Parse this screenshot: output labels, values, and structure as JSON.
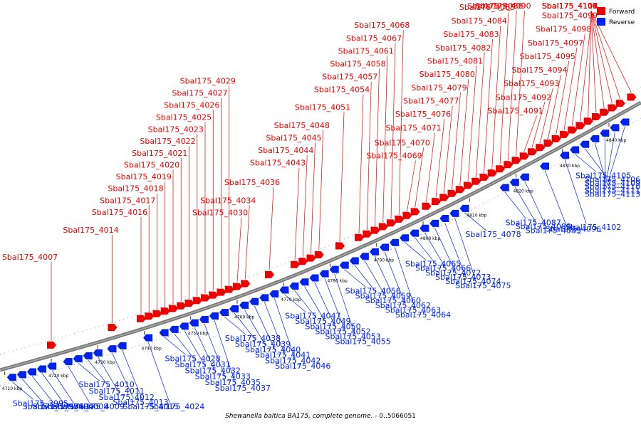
{
  "caption": {
    "organism": "Shewanella baltica BA175, complete genome.",
    "range": " - 0..5066051"
  },
  "legend": [
    {
      "name": "Forward",
      "color": "#ee0000"
    },
    {
      "name": "Reverse",
      "color": "#0022ee"
    }
  ],
  "ticks": [
    "4710 kbp",
    "4720 kbp",
    "4730 kbp",
    "4740 kbp",
    "4750 kbp",
    "4760 kbp",
    "4770 kbp",
    "4780 kbp",
    "4790 kbp",
    "4800 kbp",
    "4810 kbp",
    "4820 kbp",
    "4830 kbp",
    "4840 kbp"
  ],
  "forward_genes": [
    {
      "name": "Sbal175_4007",
      "k": 1.6
    },
    {
      "name": "Sbal175_4014",
      "k": 3.5
    },
    {
      "name": "Sbal175_4016",
      "k": 4.4
    },
    {
      "name": "Sbal175_4017",
      "k": 4.65
    },
    {
      "name": "Sbal175_4018",
      "k": 4.9
    },
    {
      "name": "Sbal175_4019",
      "k": 5.15
    },
    {
      "name": "Sbal175_4020",
      "k": 5.4
    },
    {
      "name": "Sbal175_4021",
      "k": 5.65
    },
    {
      "name": "Sbal175_4022",
      "k": 5.9
    },
    {
      "name": "Sbal175_4023",
      "k": 6.15
    },
    {
      "name": "Sbal175_4025",
      "k": 6.4
    },
    {
      "name": "Sbal175_4026",
      "k": 6.65
    },
    {
      "name": "Sbal175_4027",
      "k": 6.9
    },
    {
      "name": "Sbal175_4029",
      "k": 7.15
    },
    {
      "name": "Sbal175_4030",
      "k": 7.4
    },
    {
      "name": "Sbal175_4034",
      "k": 7.65
    },
    {
      "name": "Sbal175_4036",
      "k": 8.4
    },
    {
      "name": "Sbal175_4043",
      "k": 9.2
    },
    {
      "name": "Sbal175_4044",
      "k": 9.45
    },
    {
      "name": "Sbal175_4045",
      "k": 9.7
    },
    {
      "name": "Sbal175_4048",
      "k": 9.95
    },
    {
      "name": "Sbal175_4051",
      "k": 10.6
    },
    {
      "name": "Sbal175_4054",
      "k": 11.2
    },
    {
      "name": "Sbal175_4057",
      "k": 11.45
    },
    {
      "name": "Sbal175_4058",
      "k": 11.7
    },
    {
      "name": "Sbal175_4061",
      "k": 11.95
    },
    {
      "name": "Sbal175_4067",
      "k": 12.2
    },
    {
      "name": "Sbal175_4068",
      "k": 12.45
    },
    {
      "name": "Sbal175_4069",
      "k": 12.7
    },
    {
      "name": "Sbal175_4070",
      "k": 12.95
    },
    {
      "name": "Sbal175_4071",
      "k": 13.3
    },
    {
      "name": "Sbal175_4076",
      "k": 13.6
    },
    {
      "name": "Sbal175_4077",
      "k": 13.85
    },
    {
      "name": "Sbal175_4079",
      "k": 14.1
    },
    {
      "name": "Sbal175_4080",
      "k": 14.35
    },
    {
      "name": "Sbal175_4081",
      "k": 14.6
    },
    {
      "name": "Sbal175_4082",
      "k": 14.85
    },
    {
      "name": "Sbal175_4083",
      "k": 15.1
    },
    {
      "name": "Sbal175_4084",
      "k": 15.35
    },
    {
      "name": "Sbal175_4085",
      "k": 15.6
    },
    {
      "name": "Sbal175_4086",
      "k": 15.85
    },
    {
      "name": "Sbal175_4090",
      "k": 16.1
    },
    {
      "name": "Sbal175_4091",
      "k": 16.35
    },
    {
      "name": "Sbal175_4092",
      "k": 16.6
    },
    {
      "name": "Sbal175_4093",
      "k": 16.85
    },
    {
      "name": "Sbal175_4094",
      "k": 17.1
    },
    {
      "name": "Sbal175_4095",
      "k": 17.35
    },
    {
      "name": "Sbal175_4097",
      "k": 17.6
    },
    {
      "name": "Sbal175_4098",
      "k": 17.85
    },
    {
      "name": "Sbal175_4099",
      "k": 18.1
    },
    {
      "name": "Sbal175_4100",
      "k": 18.35
    },
    {
      "name": "Sbal175_4103",
      "k": 18.6
    },
    {
      "name": "Sbal175_4104",
      "k": 18.85
    },
    {
      "name": "Sbal175_4107",
      "k": 19.1
    },
    {
      "name": "Sbal175_4108",
      "k": 19.35
    },
    {
      "name": "Sbal175_4114",
      "k": 19.7
    }
  ],
  "reverse_genes": [
    {
      "name": "Sbal175_3995",
      "k": 0.3
    },
    {
      "name": "Sbal175_3997",
      "k": 0.55
    },
    {
      "name": "Sbal175_3999",
      "k": 0.8
    },
    {
      "name": "Sbal175_4000",
      "k": 1.05
    },
    {
      "name": "Sbal175_4008",
      "k": 1.3
    },
    {
      "name": "Sbal175_4009",
      "k": 1.7
    },
    {
      "name": "Sbal175_4010",
      "k": 1.95
    },
    {
      "name": "Sbal175_4011",
      "k": 2.2
    },
    {
      "name": "Sbal175_4012",
      "k": 2.45
    },
    {
      "name": "Sbal175_4013",
      "k": 2.8
    },
    {
      "name": "Sbal175_4015",
      "k": 3.05
    },
    {
      "name": "Sbal175_4024",
      "k": 3.7
    },
    {
      "name": "Sbal175_4028",
      "k": 4.1
    },
    {
      "name": "Sbal175_4031",
      "k": 4.35
    },
    {
      "name": "Sbal175_4032",
      "k": 4.6
    },
    {
      "name": "Sbal175_4033",
      "k": 4.85
    },
    {
      "name": "Sbal175_4035",
      "k": 5.1
    },
    {
      "name": "Sbal175_4037",
      "k": 5.35
    },
    {
      "name": "Sbal175_4038",
      "k": 5.6
    },
    {
      "name": "Sbal175_4039",
      "k": 5.85
    },
    {
      "name": "Sbal175_4040",
      "k": 6.1
    },
    {
      "name": "Sbal175_4041",
      "k": 6.35
    },
    {
      "name": "Sbal175_4042",
      "k": 6.6
    },
    {
      "name": "Sbal175_4046",
      "k": 6.85
    },
    {
      "name": "Sbal175_4047",
      "k": 7.1
    },
    {
      "name": "Sbal175_4049",
      "k": 7.35
    },
    {
      "name": "Sbal175_4050",
      "k": 7.6
    },
    {
      "name": "Sbal175_4052",
      "k": 7.85
    },
    {
      "name": "Sbal175_4053",
      "k": 8.1
    },
    {
      "name": "Sbal175_4055",
      "k": 8.35
    },
    {
      "name": "Sbal175_4056",
      "k": 8.6
    },
    {
      "name": "Sbal175_4059",
      "k": 8.85
    },
    {
      "name": "Sbal175_4060",
      "k": 9.1
    },
    {
      "name": "Sbal175_4062",
      "k": 9.35
    },
    {
      "name": "Sbal175_4063",
      "k": 9.6
    },
    {
      "name": "Sbal175_4064",
      "k": 9.85
    },
    {
      "name": "Sbal175_4065",
      "k": 10.1
    },
    {
      "name": "Sbal175_4066",
      "k": 10.35
    },
    {
      "name": "Sbal175_4072",
      "k": 10.6
    },
    {
      "name": "Sbal175_4073",
      "k": 10.85
    },
    {
      "name": "Sbal175_4074",
      "k": 11.1
    },
    {
      "name": "Sbal175_4075",
      "k": 11.35
    },
    {
      "name": "Sbal175_4078",
      "k": 11.6
    },
    {
      "name": "Sbal175_4087",
      "k": 12.6
    },
    {
      "name": "Sbal175_4088",
      "k": 12.85
    },
    {
      "name": "Sbal175_4089",
      "k": 13.1
    },
    {
      "name": "Sbal175_4096",
      "k": 13.6
    },
    {
      "name": "Sbal175_4102",
      "k": 14.1
    },
    {
      "name": "Sbal175_4105",
      "k": 14.35
    },
    {
      "name": "Sbal175_4106",
      "k": 14.6
    },
    {
      "name": "Sbal175_4109",
      "k": 14.85
    },
    {
      "name": "Sbal175_4110",
      "k": 15.1
    },
    {
      "name": "Sbal175_4111",
      "k": 15.35
    },
    {
      "name": "Sbal175_4113",
      "k": 15.6
    }
  ]
}
